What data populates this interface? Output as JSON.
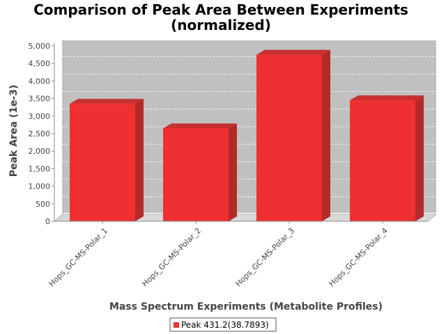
{
  "chart_data": {
    "type": "bar",
    "title_line1": "Comparison of Peak Area Between Experiments",
    "title_line2": "(normalized)",
    "xlabel": "Mass Spectrum Experiments (Metabolite Profiles)",
    "ylabel": "Peak Area (1e-3)",
    "categories": [
      "Hops_GC-MS-Polar_1",
      "Hops_GC-MS-Polar_2",
      "Hops_GC-MS-Polar_3",
      "Hops_GC-MS-Polar_4"
    ],
    "series": [
      {
        "name": "Peak 431.2(38.7893)",
        "values": [
          3350,
          2650,
          4750,
          3450
        ],
        "color": "#f03030"
      }
    ],
    "ylim": [
      0,
      5000
    ],
    "yticks": [
      0,
      500,
      1000,
      1500,
      2000,
      2500,
      3000,
      3500,
      4000,
      4500,
      5000
    ],
    "ytick_labels": [
      "0",
      "500",
      "1,000",
      "1,500",
      "2,000",
      "2,500",
      "3,000",
      "3,500",
      "4,000",
      "4,500",
      "5,000"
    ],
    "grid": true,
    "legend_position": "bottom-center",
    "plot_background": "#c0c0c0",
    "bar_side_color": "#b22a2a",
    "bar_top_color": "#c83030"
  }
}
